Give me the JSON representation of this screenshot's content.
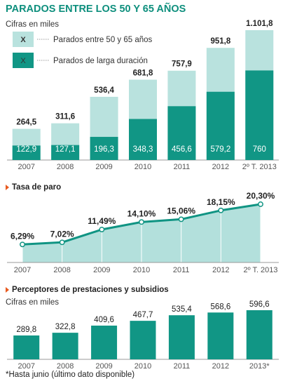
{
  "title": "PARADOS ENTRE LOS 50 Y 65 AÑOS",
  "colors": {
    "title": "#0e8f7d",
    "dark": "#119685",
    "light": "#b9e2de",
    "area": "#b3e0dc",
    "line": "#109483",
    "axis_text": "#555555",
    "value_text": "#222222",
    "grid": "#cfcfcf"
  },
  "chart_data": [
    {
      "id": "parados",
      "type": "bar",
      "subtitle": "Cifras en miles",
      "legend": {
        "position": "top-left",
        "entries": [
          {
            "swatch_text": "X",
            "label": "Parados entre 50 y 65 años",
            "color": "#b9e2de"
          },
          {
            "swatch_text": "X",
            "label": "Parados de larga duración",
            "color": "#119685"
          }
        ]
      },
      "categories": [
        "2007",
        "2008",
        "2009",
        "2010",
        "2011",
        "2012",
        "2º T. 2013"
      ],
      "category_values": [
        2007,
        2008,
        2009,
        2010,
        2011,
        2012,
        2013
      ],
      "series": [
        {
          "name": "Parados entre 50 y 65 años",
          "values": [
            264.5,
            311.6,
            536.4,
            681.8,
            757.9,
            951.8,
            1101.8
          ],
          "labels": [
            "264,5",
            "311,6",
            "536,4",
            "681,8",
            "757,9",
            "951,8",
            "1.101,8"
          ]
        },
        {
          "name": "Parados de larga duración",
          "values": [
            122.9,
            127.1,
            196.3,
            348.3,
            456.6,
            579.2,
            760
          ],
          "labels": [
            "122,9",
            "127,1",
            "196,3",
            "348,3",
            "456,6",
            "579,2",
            "760"
          ]
        }
      ],
      "ylim": [
        0,
        1101.8
      ]
    },
    {
      "id": "tasa",
      "type": "area",
      "title": "Tasa de paro",
      "categories": [
        "2007",
        "2008",
        "2009",
        "2010",
        "2011",
        "2012",
        "2º T. 2013"
      ],
      "values": [
        6.29,
        7.02,
        11.49,
        14.1,
        15.06,
        18.15,
        20.3
      ],
      "labels": [
        "6,29%",
        "7,02%",
        "11,49%",
        "14,10%",
        "15,06%",
        "18,15%",
        "20,30%"
      ],
      "ylim": [
        0,
        20.3
      ]
    },
    {
      "id": "perceptores",
      "type": "bar",
      "title": "Perceptores de prestaciones y subsidios",
      "subtitle": "Cifras en miles",
      "categories": [
        "2007",
        "2008",
        "2009",
        "2010",
        "2011",
        "2012",
        "2013*"
      ],
      "values": [
        289.8,
        322.8,
        409.6,
        467.7,
        535.4,
        568.6,
        596.6
      ],
      "labels": [
        "289,8",
        "322,8",
        "409,6",
        "467,7",
        "535,4",
        "568,6",
        "596,6"
      ],
      "ylim": [
        0,
        596.6
      ]
    }
  ],
  "footnote": "*Hasta junio (último dato disponible)"
}
